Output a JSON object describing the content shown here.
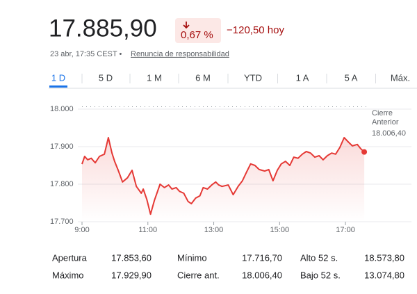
{
  "header": {
    "price": "17.885,90",
    "change_percent": "0,67 %",
    "change_abs": "−120,50 hoy",
    "timestamp": "23 abr, 17:35 CEST •",
    "disclaimer": "Renuncia de responsabilidad"
  },
  "tabs": [
    "1 D",
    "5 D",
    "1 M",
    "6 M",
    "YTD",
    "1 A",
    "5 A",
    "Máx."
  ],
  "selected_tab": 0,
  "chart_data": {
    "type": "line",
    "color": "#e53935",
    "x": [
      9.0,
      9.08,
      9.17,
      9.28,
      9.4,
      9.53,
      9.68,
      9.8,
      9.91,
      9.99,
      10.1,
      10.23,
      10.38,
      10.52,
      10.65,
      10.8,
      10.86,
      10.97,
      11.08,
      11.2,
      11.37,
      11.5,
      11.63,
      11.73,
      11.86,
      11.96,
      12.09,
      12.22,
      12.32,
      12.45,
      12.58,
      12.68,
      12.81,
      12.94,
      13.06,
      13.15,
      13.25,
      13.44,
      13.59,
      13.74,
      13.87,
      13.99,
      14.12,
      14.25,
      14.38,
      14.55,
      14.67,
      14.8,
      14.93,
      15.05,
      15.18,
      15.31,
      15.43,
      15.56,
      15.69,
      15.81,
      15.94,
      16.07,
      16.2,
      16.32,
      16.45,
      16.58,
      16.7,
      16.83,
      16.96,
      17.08,
      17.21,
      17.36,
      17.47,
      17.57
    ],
    "values": [
      17853.6,
      17874,
      17865,
      17869,
      17857,
      17874,
      17880,
      17924,
      17883,
      17861,
      17837,
      17806,
      17817,
      17837,
      17794,
      17776,
      17787,
      17759,
      17720,
      17757,
      17800,
      17791,
      17798,
      17787,
      17791,
      17781,
      17776,
      17754,
      17748,
      17763,
      17769,
      17791,
      17787,
      17798,
      17806,
      17798,
      17794,
      17798,
      17772,
      17794,
      17809,
      17831,
      17854,
      17850,
      17839,
      17835,
      17839,
      17809,
      17837,
      17854,
      17861,
      17850,
      17872,
      17869,
      17880,
      17887,
      17883,
      17872,
      17876,
      17865,
      17876,
      17883,
      17880,
      17898,
      17924,
      17913,
      17902,
      17906,
      17894,
      17885.9
    ],
    "xlim": [
      9,
      18.75
    ],
    "xticks": [
      {
        "value": 9,
        "label": "9:00"
      },
      {
        "value": 11,
        "label": "11:00"
      },
      {
        "value": 13,
        "label": "13:00"
      },
      {
        "value": 15,
        "label": "15:00"
      },
      {
        "value": 17,
        "label": "17:00"
      }
    ],
    "ylim": [
      17700,
      18000
    ],
    "yticks": [
      {
        "value": 17700,
        "label": "17.700"
      },
      {
        "value": 17800,
        "label": "17.800"
      },
      {
        "value": 17900,
        "label": "17.900"
      },
      {
        "value": 18000,
        "label": "18.000"
      }
    ],
    "grid": true,
    "previous_close": {
      "value": 18006.4,
      "label": "18.006,40",
      "title_lines": [
        "Cierre",
        "Anterior"
      ]
    }
  },
  "stats": [
    [
      {
        "label": "Apertura",
        "value": "17.853,60"
      },
      {
        "label": "Mínimo",
        "value": "17.716,70"
      },
      {
        "label": "Alto 52 s.",
        "value": "18.573,80"
      }
    ],
    [
      {
        "label": "Máximo",
        "value": "17.929,90"
      },
      {
        "label": "Cierre ant.",
        "value": "18.006,40"
      },
      {
        "label": "Bajo 52 s.",
        "value": "13.074,80"
      }
    ]
  ]
}
